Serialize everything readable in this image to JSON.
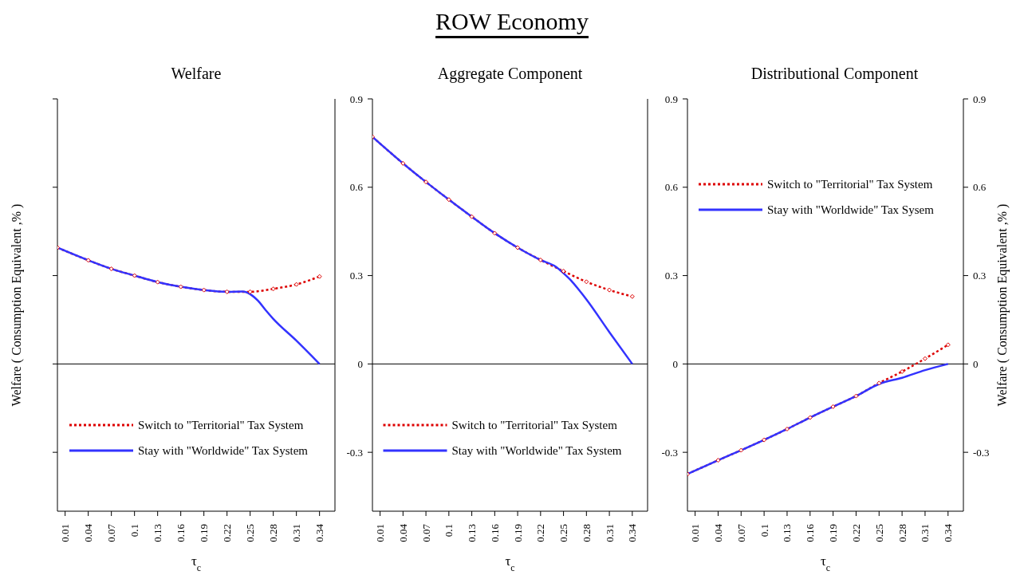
{
  "chart_data": [
    {
      "type": "line",
      "title": "Welfare",
      "annotations": [
        "ROW Economy"
      ],
      "xlabel": "τ$_{c}$",
      "ylabel": "Welfare ( Consumption Equivalent ,% )",
      "xlim": [
        0,
        0.36
      ],
      "xticks": [
        0.01,
        0.04,
        0.07,
        0.1,
        0.13,
        0.16,
        0.19,
        0.22,
        0.25,
        0.28,
        0.31,
        0.34
      ],
      "ylim": [
        -0.5,
        0.9
      ],
      "yticks": [
        -0.3,
        0,
        0.3,
        0.6,
        0.9
      ],
      "tick_labels": "x",
      "grid": false,
      "legend": "bottom",
      "ref_lines": [
        {
          "axis": "y",
          "value": 0,
          "color": "#000000"
        }
      ],
      "series": [
        {
          "name": "Switch to \"Territorial\" Tax System",
          "color": "#dd0000",
          "line_style": "dotted",
          "marker": "diamond",
          "x": [
            0,
            0.04,
            0.07,
            0.1,
            0.13,
            0.16,
            0.19,
            0.22,
            0.25,
            0.28,
            0.31,
            0.34
          ],
          "values": [
            0.395,
            0.352,
            0.323,
            0.3,
            0.278,
            0.262,
            0.251,
            0.245,
            0.245,
            0.255,
            0.27,
            0.297
          ]
        },
        {
          "name": "Stay with \"Worldwide\" Tax System",
          "color": "#3333ff",
          "line_style": "solid",
          "marker": "none",
          "x": [
            0,
            0.04,
            0.07,
            0.1,
            0.13,
            0.16,
            0.19,
            0.22,
            0.24,
            0.25,
            0.26,
            0.27,
            0.28,
            0.31,
            0.34
          ],
          "values": [
            0.395,
            0.352,
            0.323,
            0.3,
            0.278,
            0.262,
            0.251,
            0.245,
            0.246,
            0.237,
            0.215,
            0.183,
            0.153,
            0.079,
            0
          ]
        }
      ]
    },
    {
      "type": "line",
      "title": "Aggregate Component",
      "xlabel": "τ$_{c}$",
      "xlim": [
        0,
        0.36
      ],
      "xticks": [
        0.01,
        0.04,
        0.07,
        0.1,
        0.13,
        0.16,
        0.19,
        0.22,
        0.25,
        0.28,
        0.31,
        0.34
      ],
      "ylim": [
        -0.5,
        0.9
      ],
      "yticks": [
        -0.3,
        0,
        0.3,
        0.6,
        0.9
      ],
      "grid": false,
      "legend": "bottom",
      "ref_lines": [
        {
          "axis": "y",
          "value": 0,
          "color": "#000000"
        }
      ],
      "series": [
        {
          "name": "Switch to \"Territorial\" Tax System",
          "color": "#dd0000",
          "line_style": "dotted",
          "marker": "diamond",
          "x": [
            0,
            0.04,
            0.07,
            0.1,
            0.13,
            0.16,
            0.19,
            0.22,
            0.25,
            0.28,
            0.31,
            0.34
          ],
          "values": [
            0.771,
            0.681,
            0.618,
            0.558,
            0.5,
            0.444,
            0.395,
            0.353,
            0.315,
            0.279,
            0.251,
            0.229
          ]
        },
        {
          "name": "Stay with \"Worldwide\" Tax System",
          "color": "#3333ff",
          "line_style": "solid",
          "marker": "none",
          "x": [
            0,
            0.04,
            0.07,
            0.1,
            0.13,
            0.16,
            0.19,
            0.22,
            0.24,
            0.25,
            0.26,
            0.27,
            0.28,
            0.31,
            0.34
          ],
          "values": [
            0.771,
            0.681,
            0.618,
            0.558,
            0.5,
            0.444,
            0.395,
            0.353,
            0.33,
            0.308,
            0.283,
            0.252,
            0.219,
            0.108,
            0
          ]
        }
      ]
    },
    {
      "type": "line",
      "title": "Distributional Component",
      "xlabel": "τ$_{c}$",
      "y2label": "Welfare ( Consumption Equivalent ,% )",
      "xlim": [
        0,
        0.36
      ],
      "xticks": [
        0.01,
        0.04,
        0.07,
        0.1,
        0.13,
        0.16,
        0.19,
        0.22,
        0.25,
        0.28,
        0.31,
        0.34
      ],
      "ylim": [
        -0.5,
        0.9
      ],
      "yticks": [
        -0.3,
        0,
        0.3,
        0.6,
        0.9
      ],
      "y2lim": [
        -0.5,
        0.9
      ],
      "y2ticks": [
        -0.3,
        0,
        0.3,
        0.6,
        0.9
      ],
      "grid": false,
      "legend": "top",
      "ref_lines": [
        {
          "axis": "y",
          "value": 0,
          "color": "#000000"
        }
      ],
      "series": [
        {
          "name": "Switch to \"Territorial\" Tax System",
          "color": "#dd0000",
          "line_style": "dotted",
          "marker": "diamond",
          "x": [
            0,
            0.04,
            0.07,
            0.1,
            0.13,
            0.16,
            0.19,
            0.22,
            0.25,
            0.28,
            0.31,
            0.34
          ],
          "values": [
            -0.374,
            -0.327,
            -0.293,
            -0.258,
            -0.221,
            -0.182,
            -0.145,
            -0.109,
            -0.065,
            -0.026,
            0.018,
            0.065
          ]
        },
        {
          "name": "Stay with \"Worldwide\" Tax Sysem",
          "color": "#3333ff",
          "line_style": "solid",
          "marker": "none",
          "x": [
            0,
            0.04,
            0.07,
            0.1,
            0.13,
            0.16,
            0.19,
            0.22,
            0.25,
            0.28,
            0.31,
            0.34
          ],
          "values": [
            -0.374,
            -0.327,
            -0.293,
            -0.258,
            -0.221,
            -0.182,
            -0.145,
            -0.109,
            -0.068,
            -0.047,
            -0.021,
            0
          ]
        }
      ]
    }
  ]
}
